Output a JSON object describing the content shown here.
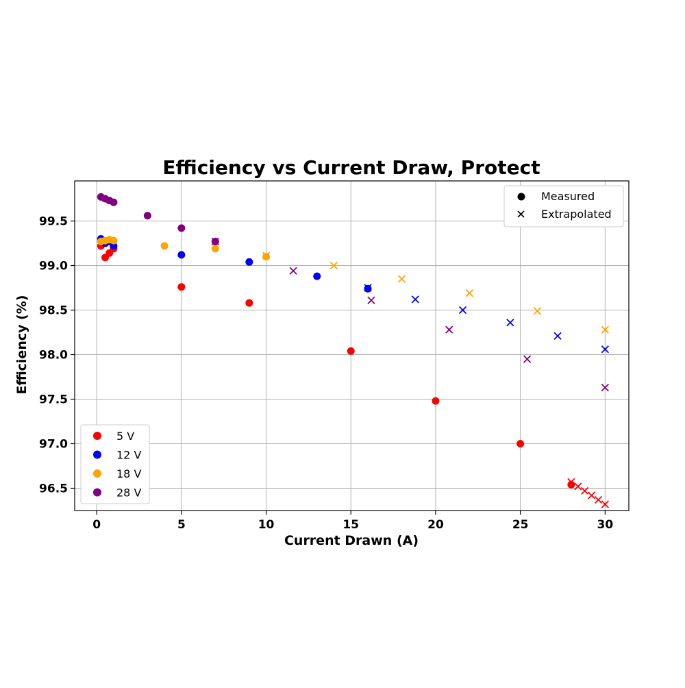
{
  "chart_data": {
    "type": "scatter",
    "title": "Efficiency vs Current Draw, Protect",
    "xlabel": "Current Drawn (A)",
    "ylabel": "Efficiency (%)",
    "xlim": [
      -1.3,
      31.4
    ],
    "ylim": [
      96.25,
      99.95
    ],
    "x_ticks": [
      0,
      5,
      10,
      15,
      20,
      25,
      30
    ],
    "y_ticks": [
      96.5,
      97.0,
      97.5,
      98.0,
      98.5,
      99.0,
      99.5
    ],
    "x_tick_labels": [
      "0",
      "5",
      "10",
      "15",
      "20",
      "25",
      "30"
    ],
    "y_tick_labels": [
      "96.5",
      "97.0",
      "97.5",
      "98.0",
      "98.5",
      "99.0",
      "99.5"
    ],
    "grid": true,
    "marker_legend": {
      "position": "upper-right",
      "entries": [
        {
          "marker": "circle",
          "label": "Measured"
        },
        {
          "marker": "x",
          "label": "Extrapolated"
        }
      ]
    },
    "series_legend_position": "lower-left",
    "series": [
      {
        "name": "5 V",
        "color": "#ff0000",
        "measured": {
          "x": [
            0.25,
            0.5,
            0.75,
            1.0,
            5,
            9,
            15,
            20,
            25,
            28
          ],
          "y": [
            99.22,
            99.09,
            99.14,
            99.19,
            98.76,
            98.58,
            98.04,
            97.48,
            97.0,
            96.54
          ]
        },
        "extrapolated": {
          "x": [
            28.0,
            28.4,
            28.8,
            29.2,
            29.6,
            30.0
          ],
          "y": [
            96.57,
            96.52,
            96.47,
            96.42,
            96.37,
            96.32
          ]
        }
      },
      {
        "name": "12 V",
        "color": "#0000ff",
        "measured": {
          "x": [
            0.25,
            0.5,
            0.75,
            1.0,
            5,
            9,
            13,
            16
          ],
          "y": [
            99.3,
            99.25,
            99.27,
            99.22,
            99.12,
            99.04,
            98.88,
            98.74
          ]
        },
        "extrapolated": {
          "x": [
            16.0,
            18.8,
            21.6,
            24.4,
            27.2,
            30.0
          ],
          "y": [
            98.75,
            98.62,
            98.5,
            98.36,
            98.21,
            98.06
          ]
        }
      },
      {
        "name": "18 V",
        "color": "#ffa500",
        "measured": {
          "x": [
            0.25,
            0.5,
            0.75,
            1.0,
            4,
            7,
            10
          ],
          "y": [
            99.27,
            99.28,
            99.29,
            99.28,
            99.22,
            99.19,
            99.1
          ]
        },
        "extrapolated": {
          "x": [
            10.0,
            14.0,
            18.0,
            22.0,
            26.0,
            30.0
          ],
          "y": [
            99.11,
            99.0,
            98.85,
            98.69,
            98.49,
            98.28
          ]
        }
      },
      {
        "name": "28 V",
        "color": "#800080",
        "measured": {
          "x": [
            0.25,
            0.5,
            0.75,
            1.0,
            3,
            5,
            7
          ],
          "y": [
            99.77,
            99.75,
            99.73,
            99.71,
            99.56,
            99.42,
            99.27
          ]
        },
        "extrapolated": {
          "x": [
            7.0,
            11.6,
            16.2,
            20.8,
            25.4,
            30.0
          ],
          "y": [
            99.27,
            98.94,
            98.61,
            98.28,
            97.95,
            97.63
          ]
        }
      }
    ]
  }
}
